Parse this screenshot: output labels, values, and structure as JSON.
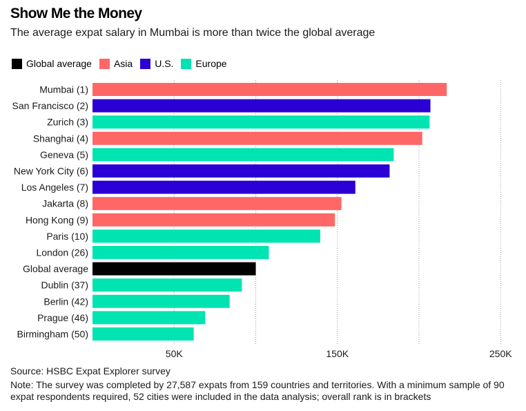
{
  "title": "Show Me the Money",
  "subtitle": "The average expat salary in Mumbai is more than twice the global average",
  "legend": [
    {
      "label": "Global average",
      "color": "#000000"
    },
    {
      "label": "Asia",
      "color": "#ff6767"
    },
    {
      "label": "U.S.",
      "color": "#2a00d4"
    },
    {
      "label": "Europe",
      "color": "#00e4b2"
    }
  ],
  "source": "Source: HSBC Expat Explorer survey",
  "note": "Note: The survey was completed by 27,587 expats from 159 countries and territories. With a minimum sample of 90 expat respondents required, 52 cities were included in the data analysis; overall rank is in brackets",
  "chart_data": {
    "type": "bar",
    "orientation": "horizontal",
    "title": "Show Me the Money",
    "xlabel": "",
    "ylabel": "",
    "xlim": [
      0,
      250000
    ],
    "xticks": [
      50000,
      150000,
      250000
    ],
    "xtick_labels": [
      "50K",
      "150K",
      "250K"
    ],
    "gridlines": [
      50000,
      100000,
      150000,
      200000,
      250000
    ],
    "categories": [
      "Mumbai (1)",
      "San Francisco (2)",
      "Zurich (3)",
      "Shanghai (4)",
      "Geneva (5)",
      "New York City (6)",
      "Los Angeles (7)",
      "Jakarta (8)",
      "Hong Kong (9)",
      "Paris (10)",
      "London (26)",
      "Global average",
      "Dublin (37)",
      "Berlin (42)",
      "Prague (46)",
      "Birmingham (50)"
    ],
    "values": [
      217000,
      207000,
      206500,
      202000,
      184500,
      182000,
      161000,
      152500,
      148500,
      139500,
      108000,
      100000,
      91500,
      84000,
      69000,
      62000
    ],
    "groups": [
      "Asia",
      "U.S.",
      "Europe",
      "Asia",
      "Europe",
      "U.S.",
      "U.S.",
      "Asia",
      "Asia",
      "Europe",
      "Europe",
      "Global average",
      "Europe",
      "Europe",
      "Europe",
      "Europe"
    ],
    "colors": {
      "Global average": "#000000",
      "Asia": "#ff6767",
      "U.S.": "#2a00d4",
      "Europe": "#00e4b2"
    }
  }
}
